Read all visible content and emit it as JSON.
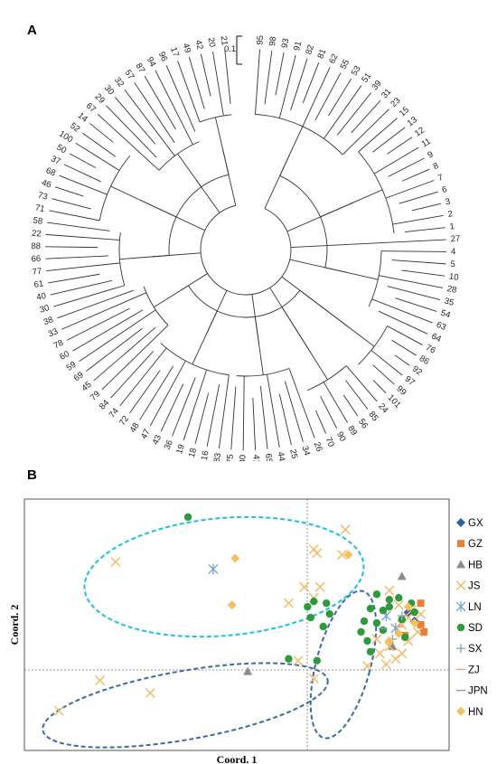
{
  "panel_a": {
    "label": "A",
    "scale_bar_label": "0.1",
    "leaves": [
      "95",
      "98",
      "93",
      "91",
      "82",
      "81",
      "62",
      "55",
      "53",
      "51",
      "39",
      "31",
      "23",
      "15",
      "13",
      "12",
      "11",
      "9",
      "8",
      "7",
      "6",
      "3",
      "2",
      "1",
      "27",
      "4",
      "5",
      "10",
      "28",
      "35",
      "54",
      "63",
      "64",
      "76",
      "86",
      "92",
      "97",
      "99",
      "101",
      "24",
      "85",
      "56",
      "89",
      "90",
      "70",
      "26",
      "34",
      "25",
      "44",
      "65",
      "41",
      "80",
      "75",
      "83",
      "16",
      "18",
      "19",
      "36",
      "43",
      "47",
      "48",
      "72",
      "74",
      "84",
      "79",
      "45",
      "69",
      "59",
      "60",
      "78",
      "33",
      "38",
      "30",
      "40",
      "61",
      "77",
      "66",
      "88",
      "22",
      "58",
      "71",
      "73",
      "46",
      "68",
      "37",
      "50",
      "100",
      "52",
      "14",
      "67",
      "29",
      "30",
      "32",
      "57",
      "87",
      "94",
      "96",
      "17",
      "49",
      "42",
      "20",
      "21"
    ]
  },
  "panel_b": {
    "label": "B",
    "xlabel": "Coord. 1",
    "ylabel": "Coord. 2",
    "legend": [
      {
        "name": "GX",
        "color": "#2e5fa8",
        "marker": "diamond"
      },
      {
        "name": "GZ",
        "color": "#ee7d31",
        "marker": "square"
      },
      {
        "name": "HB",
        "color": "#8c8c8c",
        "marker": "triangle"
      },
      {
        "name": "JS",
        "color": "#f2b860",
        "marker": "x"
      },
      {
        "name": "LN",
        "color": "#6a9fd4",
        "marker": "asterisk"
      },
      {
        "name": "SD",
        "color": "#2e9a3b",
        "marker": "circle"
      },
      {
        "name": "SX",
        "color": "#8fa7d1",
        "marker": "plus"
      },
      {
        "name": "ZJ",
        "color": "#f3a060",
        "marker": "dash"
      },
      {
        "name": "JPN",
        "color": "#7f9bc6",
        "marker": "dash"
      },
      {
        "name": "HN",
        "color": "#f6c15c",
        "marker": "diamond"
      }
    ]
  },
  "chart_data": {
    "type": "scatter",
    "xlabel": "Coord. 1",
    "ylabel": "Coord. 2",
    "xlim": [
      -1.0,
      0.35
    ],
    "ylim": [
      -0.75,
      0.65
    ],
    "grid": false,
    "legend_position": "right",
    "series": [
      {
        "name": "GX",
        "points": [
          [
            0.22,
            0.02
          ],
          [
            0.24,
            -0.03
          ]
        ]
      },
      {
        "name": "GZ",
        "points": [
          [
            0.26,
            -0.05
          ],
          [
            0.27,
            -0.09
          ],
          [
            0.21,
            -0.11
          ],
          [
            0.26,
            0.07
          ]
        ]
      },
      {
        "name": "HB",
        "points": [
          [
            -0.29,
            -0.31
          ],
          [
            0.17,
            -0.17
          ],
          [
            0.2,
            0.22
          ]
        ]
      },
      {
        "name": "JS",
        "points": [
          [
            -0.71,
            0.3
          ],
          [
            -0.89,
            -0.53
          ],
          [
            -0.76,
            -0.36
          ],
          [
            -0.6,
            -0.43
          ],
          [
            -0.13,
            -0.25
          ],
          [
            -0.08,
            -0.35
          ],
          [
            -0.08,
            0.37
          ],
          [
            -0.07,
            0.35
          ],
          [
            -0.11,
            0.16
          ],
          [
            -0.06,
            0.16
          ],
          [
            0.02,
            0.48
          ],
          [
            0.01,
            0.34
          ],
          [
            0.16,
            0.14
          ],
          [
            -0.16,
            0.07
          ],
          [
            -0.08,
            0.1
          ],
          [
            0.2,
            -0.05
          ],
          [
            0.22,
            -0.01
          ],
          [
            0.26,
            0.01
          ],
          [
            0.23,
            0.03
          ],
          [
            0.19,
            0.06
          ],
          [
            0.12,
            -0.13
          ],
          [
            0.16,
            -0.17
          ],
          [
            0.13,
            -0.21
          ],
          [
            0.18,
            -0.24
          ],
          [
            0.2,
            -0.21
          ],
          [
            0.15,
            -0.27
          ],
          [
            0.09,
            -0.28
          ],
          [
            0.22,
            -0.14
          ],
          [
            0.25,
            -0.09
          ]
        ]
      },
      {
        "name": "LN",
        "points": [
          [
            -0.4,
            0.26
          ],
          [
            0.15,
            0.0
          ],
          [
            0.18,
            -0.07
          ]
        ]
      },
      {
        "name": "SD",
        "points": [
          [
            -0.48,
            0.55
          ],
          [
            -0.1,
            0.05
          ],
          [
            -0.09,
            -0.01
          ],
          [
            -0.16,
            -0.24
          ],
          [
            -0.07,
            -0.25
          ],
          [
            -0.05,
            -0.06
          ],
          [
            -0.03,
            0.01
          ],
          [
            -0.04,
            0.07
          ],
          [
            -0.08,
            0.08
          ],
          [
            0.07,
            -0.09
          ],
          [
            0.12,
            -0.04
          ],
          [
            0.14,
            -0.08
          ],
          [
            0.16,
            0.09
          ],
          [
            0.19,
            0.1
          ],
          [
            0.23,
            0.07
          ],
          [
            0.2,
            -0.02
          ],
          [
            0.24,
            0.02
          ],
          [
            0.09,
            -0.14
          ],
          [
            0.12,
            0.12
          ],
          [
            0.16,
            0.05
          ],
          [
            0.1,
            0.04
          ],
          [
            0.08,
            -0.03
          ],
          [
            0.14,
            0.03
          ],
          [
            0.1,
            -0.2
          ],
          [
            0.21,
            -0.12
          ]
        ]
      },
      {
        "name": "SX",
        "points": [
          [
            0.17,
            -0.13
          ],
          [
            0.2,
            0.0
          ]
        ]
      },
      {
        "name": "ZJ",
        "points": [
          [
            0.19,
            -0.06
          ]
        ]
      },
      {
        "name": "JPN",
        "points": [
          [
            0.14,
            -0.07
          ]
        ]
      },
      {
        "name": "HN",
        "points": [
          [
            -0.33,
            0.32
          ],
          [
            -0.34,
            0.06
          ],
          [
            0.03,
            0.34
          ],
          [
            0.16,
            -0.14
          ],
          [
            0.22,
            0.05
          ],
          [
            0.24,
            -0.04
          ],
          [
            0.19,
            -0.1
          ]
        ]
      }
    ]
  }
}
